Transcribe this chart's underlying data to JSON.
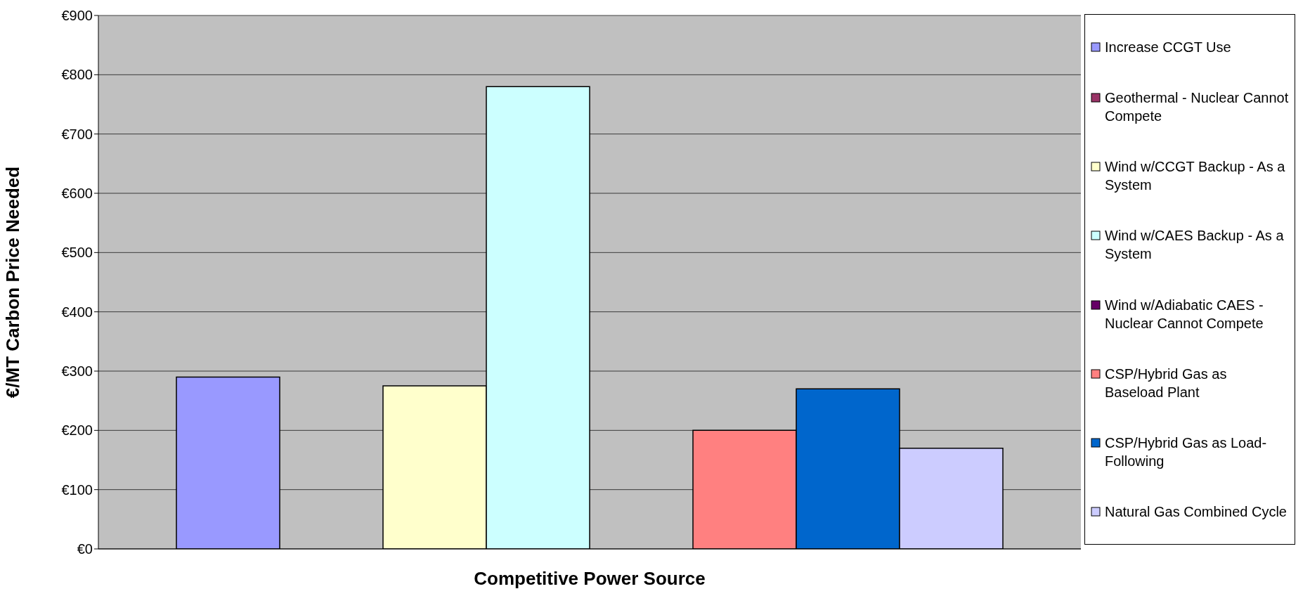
{
  "chart_data": {
    "type": "bar",
    "xlabel": "Competitive Power Source",
    "ylabel": "€/MT Carbon Price Needed",
    "categories": [
      null
    ],
    "series": [
      {
        "name": "Increase CCGT Use",
        "color": "#9999ff",
        "values": [
          290
        ]
      },
      {
        "name": "Geothermal - Nuclear Cannot Compete",
        "color": "#993366",
        "values": [
          null
        ]
      },
      {
        "name": "Wind w/CCGT Backup - As a System",
        "color": "#ffffcc",
        "values": [
          275
        ]
      },
      {
        "name": "Wind w/CAES Backup - As a System",
        "color": "#ccffff",
        "values": [
          780
        ]
      },
      {
        "name": "Wind w/Adiabatic CAES - Nuclear Cannot Compete",
        "color": "#660066",
        "values": [
          null
        ]
      },
      {
        "name": "CSP/Hybrid Gas as Baseload Plant",
        "color": "#ff8080",
        "values": [
          200
        ]
      },
      {
        "name": "CSP/Hybrid Gas as Load-Following",
        "color": "#0066cc",
        "values": [
          270
        ]
      },
      {
        "name": "Natural Gas Combined Cycle",
        "color": "#ccccff",
        "values": [
          170
        ]
      }
    ],
    "ylim": [
      0,
      900
    ],
    "yticks": [
      {
        "value": 0,
        "label": "€0"
      },
      {
        "value": 100,
        "label": "€100"
      },
      {
        "value": 200,
        "label": "€200"
      },
      {
        "value": 300,
        "label": "€300"
      },
      {
        "value": 400,
        "label": "€400"
      },
      {
        "value": 500,
        "label": "€500"
      },
      {
        "value": 600,
        "label": "€600"
      },
      {
        "value": 700,
        "label": "€700"
      },
      {
        "value": 800,
        "label": "€800"
      },
      {
        "value": 900,
        "label": "€900"
      }
    ],
    "grid": "y",
    "legend": "right"
  }
}
